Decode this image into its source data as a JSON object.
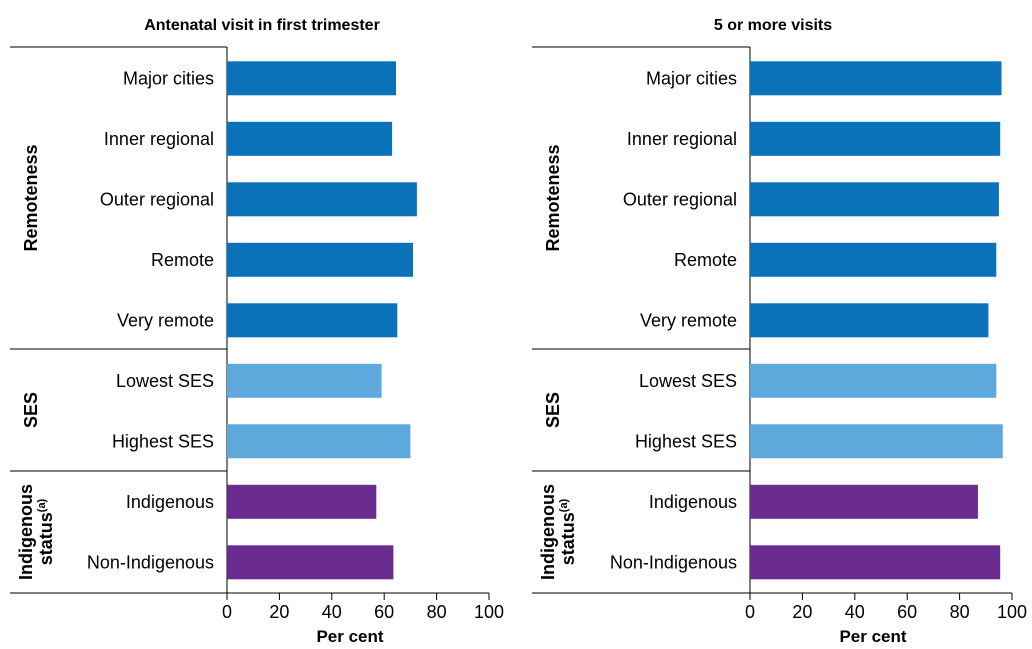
{
  "chart_data": [
    {
      "type": "bar",
      "orientation": "horizontal",
      "title": "Antenatal visit in first trimester",
      "xlabel": "Per cent",
      "xlim": [
        0,
        100
      ],
      "xticks": [
        "0",
        "20",
        "40",
        "60",
        "80",
        "100"
      ],
      "grid": false,
      "groups": [
        {
          "label": "Remoteness",
          "color": "#0a72b8",
          "categories": [
            "Major cities",
            "Inner regional",
            "Outer regional",
            "Remote",
            "Very remote"
          ],
          "values": [
            64.5,
            63,
            72.5,
            71,
            65
          ]
        },
        {
          "label": "SES",
          "color": "#5ea8dc",
          "categories": [
            "Lowest SES",
            "Highest SES"
          ],
          "values": [
            59,
            70
          ]
        },
        {
          "label": "Indigenous",
          "label_line2": "status",
          "label_sup": "(a)",
          "color": "#6a2c8e",
          "categories": [
            "Indigenous",
            "Non-Indigenous"
          ],
          "values": [
            57,
            63.5
          ]
        }
      ]
    },
    {
      "type": "bar",
      "orientation": "horizontal",
      "title": "5 or more visits",
      "xlabel": "Per cent",
      "xlim": [
        0,
        100
      ],
      "xticks": [
        "0",
        "20",
        "40",
        "60",
        "80",
        "100"
      ],
      "grid": false,
      "groups": [
        {
          "label": "Remoteness",
          "color": "#0a72b8",
          "categories": [
            "Major cities",
            "Inner regional",
            "Outer regional",
            "Remote",
            "Very remote"
          ],
          "values": [
            96,
            95.5,
            95,
            94,
            91
          ]
        },
        {
          "label": "SES",
          "color": "#5ea8dc",
          "categories": [
            "Lowest SES",
            "Highest SES"
          ],
          "values": [
            94,
            96.5
          ]
        },
        {
          "label": "Indigenous",
          "label_line2": "status",
          "label_sup": "(a)",
          "color": "#6a2c8e",
          "categories": [
            "Indigenous",
            "Non-Indigenous"
          ],
          "values": [
            87,
            95.5
          ]
        }
      ]
    }
  ]
}
